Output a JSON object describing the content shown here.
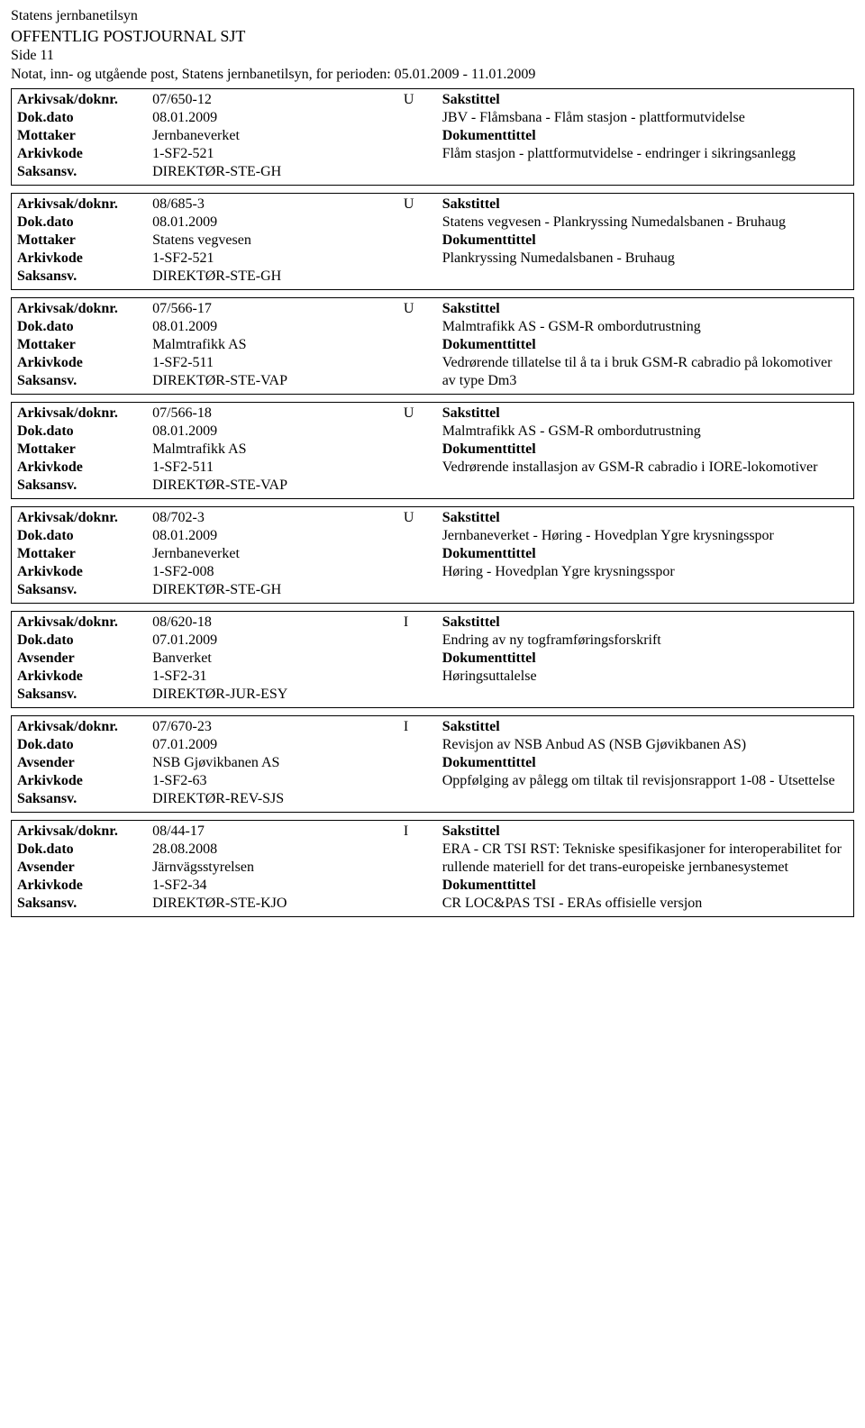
{
  "header": {
    "org": "Statens jernbanetilsyn",
    "title": "OFFENTLIG POSTJOURNAL SJT",
    "page": "Side 11",
    "note": "Notat, inn- og utgående post, Statens jernbanetilsyn, for perioden: 05.01.2009 - 11.01.2009"
  },
  "labels": {
    "arkivsak": "Arkivsak/doknr.",
    "dokdato": "Dok.dato",
    "mottaker": "Mottaker",
    "avsender": "Avsender",
    "arkivkode": "Arkivkode",
    "saksansv": "Saksansv.",
    "sakstittel": "Sakstittel",
    "dokumenttittel": "Dokumenttittel"
  },
  "records": [
    {
      "doknr": "07/650-12",
      "type": "U",
      "dato": "08.01.2009",
      "party_label": "Mottaker",
      "party": "Jernbaneverket",
      "arkivkode": "1-SF2-521",
      "saksansv": "DIREKTØR-STE-GH",
      "sakstittel": "JBV - Flåmsbana - Flåm stasjon - plattformutvidelse",
      "doktittel": "Flåm stasjon - plattformutvidelse - endringer i sikringsanlegg"
    },
    {
      "doknr": "08/685-3",
      "type": "U",
      "dato": "08.01.2009",
      "party_label": "Mottaker",
      "party": "Statens vegvesen",
      "arkivkode": "1-SF2-521",
      "saksansv": "DIREKTØR-STE-GH",
      "sakstittel": "Statens vegvesen - Plankryssing Numedalsbanen - Bruhaug",
      "doktittel": "Plankryssing Numedalsbanen - Bruhaug"
    },
    {
      "doknr": "07/566-17",
      "type": "U",
      "dato": "08.01.2009",
      "party_label": "Mottaker",
      "party": "Malmtrafikk AS",
      "arkivkode": "1-SF2-511",
      "saksansv": "DIREKTØR-STE-VAP",
      "sakstittel": "Malmtrafikk AS - GSM-R ombordutrustning",
      "doktittel": "Vedrørende tillatelse til å ta i bruk GSM-R cabradio på lokomotiver av type Dm3"
    },
    {
      "doknr": "07/566-18",
      "type": "U",
      "dato": "08.01.2009",
      "party_label": "Mottaker",
      "party": "Malmtrafikk AS",
      "arkivkode": "1-SF2-511",
      "saksansv": "DIREKTØR-STE-VAP",
      "sakstittel": "Malmtrafikk AS - GSM-R ombordutrustning",
      "doktittel": "Vedrørende installasjon av GSM-R cabradio i IORE-lokomotiver"
    },
    {
      "doknr": "08/702-3",
      "type": "U",
      "dato": "08.01.2009",
      "party_label": "Mottaker",
      "party": "Jernbaneverket",
      "arkivkode": "1-SF2-008",
      "saksansv": "DIREKTØR-STE-GH",
      "sakstittel": "Jernbaneverket - Høring - Hovedplan Ygre krysningsspor",
      "doktittel": "Høring - Hovedplan Ygre krysningsspor"
    },
    {
      "doknr": "08/620-18",
      "type": "I",
      "dato": "07.01.2009",
      "party_label": "Avsender",
      "party": "Banverket",
      "arkivkode": "1-SF2-31",
      "saksansv": "DIREKTØR-JUR-ESY",
      "sakstittel": "Endring av ny togframføringsforskrift",
      "doktittel": "Høringsuttalelse"
    },
    {
      "doknr": "07/670-23",
      "type": "I",
      "dato": "07.01.2009",
      "party_label": "Avsender",
      "party": "NSB Gjøvikbanen AS",
      "arkivkode": "1-SF2-63",
      "saksansv": "DIREKTØR-REV-SJS",
      "sakstittel": "Revisjon av NSB Anbud AS (NSB Gjøvikbanen AS)",
      "doktittel": "Oppfølging av pålegg om tiltak til revisjonsrapport 1-08 - Utsettelse"
    },
    {
      "doknr": "08/44-17",
      "type": "I",
      "dato": "28.08.2008",
      "party_label": "Avsender",
      "party": "Järnvägsstyrelsen",
      "arkivkode": "1-SF2-34",
      "saksansv": "DIREKTØR-STE-KJO",
      "sakstittel": "ERA - CR TSI RST: Tekniske spesifikasjoner for interoperabilitet for rullende materiell for det trans-europeiske jernbanesystemet",
      "doktittel": "CR LOC&PAS TSI - ERAs offisielle versjon"
    }
  ]
}
